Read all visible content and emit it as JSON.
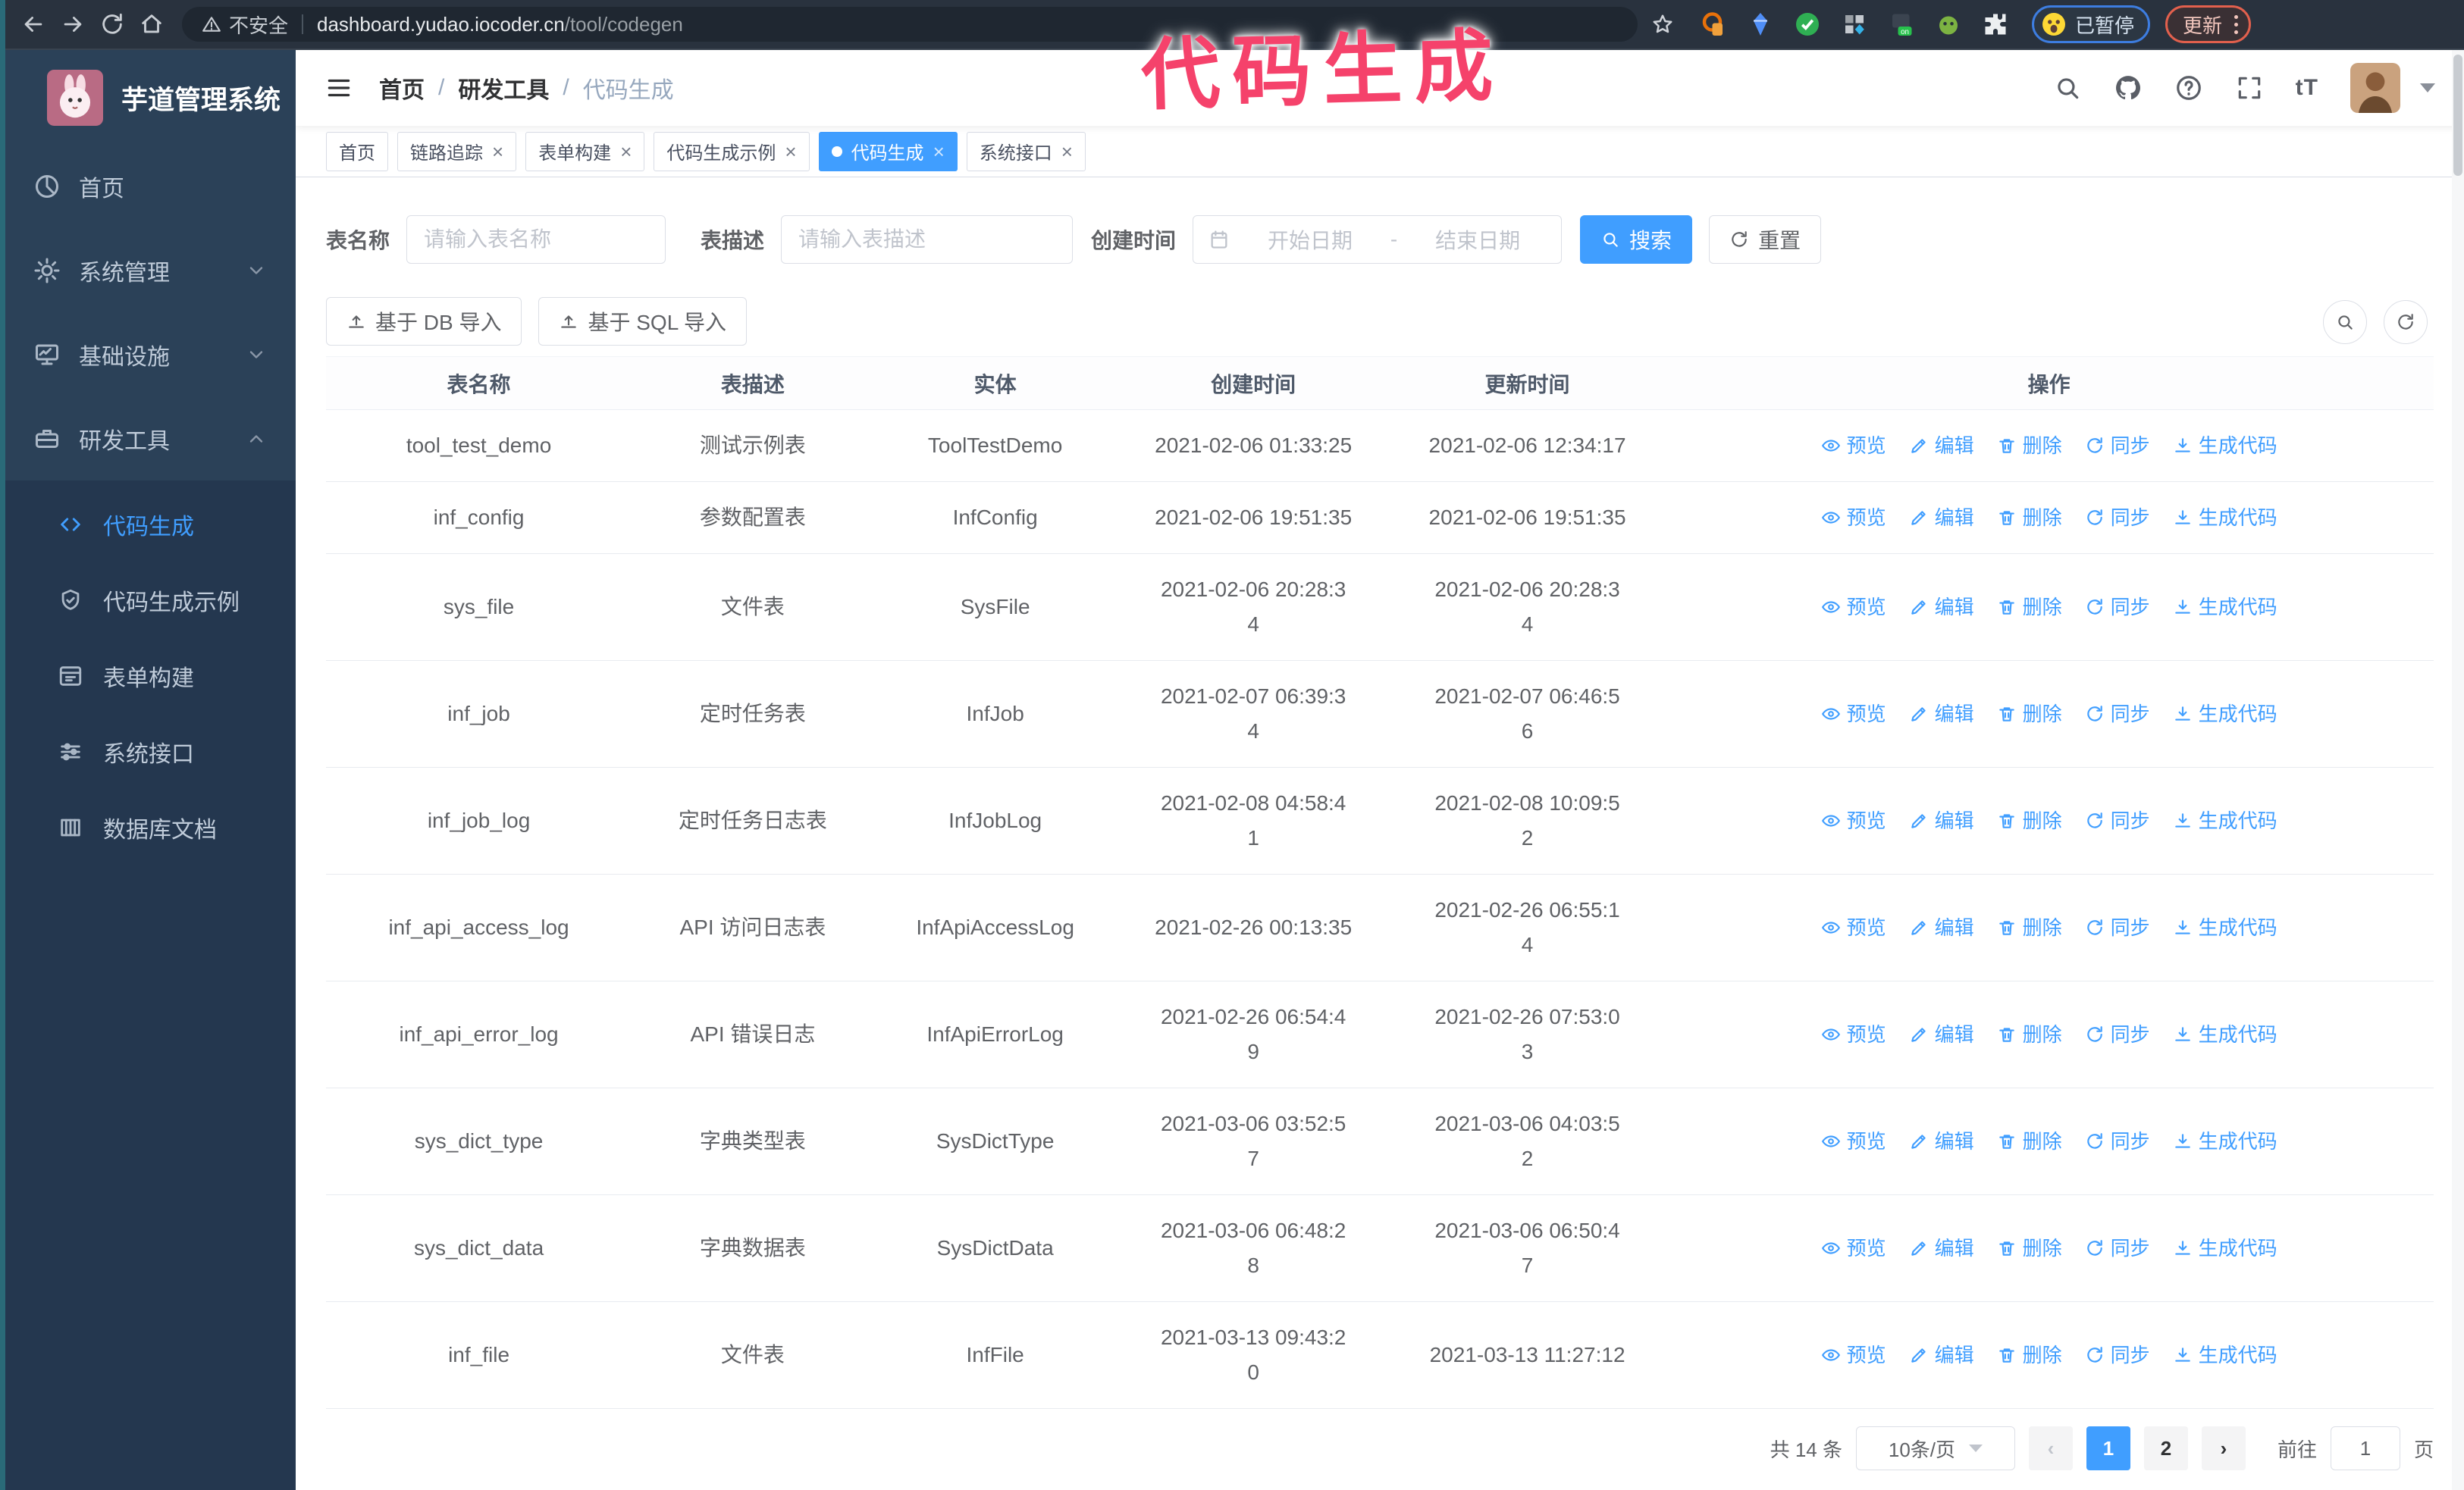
{
  "browser": {
    "security_label": "不安全",
    "url_domain": "dashboard.yudao.iocoder.cn",
    "url_path": "/tool/codegen",
    "profile_badge": "已暂停",
    "update_label": "更新"
  },
  "annotation": {
    "text": "代码生成",
    "color": "#f5426b"
  },
  "sidebar": {
    "title": "芋道管理系统",
    "items": [
      {
        "label": "首页"
      },
      {
        "label": "系统管理"
      },
      {
        "label": "基础设施"
      },
      {
        "label": "研发工具"
      }
    ],
    "submenu": [
      {
        "label": "代码生成",
        "active": true
      },
      {
        "label": "代码生成示例"
      },
      {
        "label": "表单构建"
      },
      {
        "label": "系统接口"
      },
      {
        "label": "数据库文档"
      }
    ]
  },
  "breadcrumb": [
    "首页",
    "研发工具",
    "代码生成"
  ],
  "tags": [
    {
      "label": "首页",
      "closable": false,
      "active": false
    },
    {
      "label": "链路追踪",
      "closable": true,
      "active": false
    },
    {
      "label": "表单构建",
      "closable": true,
      "active": false
    },
    {
      "label": "代码生成示例",
      "closable": true,
      "active": false
    },
    {
      "label": "代码生成",
      "closable": true,
      "active": true
    },
    {
      "label": "系统接口",
      "closable": true,
      "active": false
    }
  ],
  "filters": {
    "table_name_label": "表名称",
    "table_name_placeholder": "请输入表名称",
    "table_desc_label": "表描述",
    "table_desc_placeholder": "请输入表描述",
    "create_time_label": "创建时间",
    "date_start_placeholder": "开始日期",
    "date_separator": "-",
    "date_end_placeholder": "结束日期",
    "search_label": "搜索",
    "reset_label": "重置"
  },
  "toolbar": {
    "import_db_label": "基于 DB 导入",
    "import_sql_label": "基于 SQL 导入"
  },
  "table": {
    "columns": [
      "表名称",
      "表描述",
      "实体",
      "创建时间",
      "更新时间",
      "操作"
    ],
    "row_actions": [
      {
        "label": "预览",
        "icon": "eye"
      },
      {
        "label": "编辑",
        "icon": "edit"
      },
      {
        "label": "删除",
        "icon": "delete"
      },
      {
        "label": "同步",
        "icon": "sync"
      },
      {
        "label": "生成代码",
        "icon": "download"
      }
    ],
    "rows": [
      {
        "name": "tool_test_demo",
        "desc": "测试示例表",
        "entity": "ToolTestDemo",
        "created": "2021-02-06 01:33:25",
        "updated": "2021-02-06 12:34:17"
      },
      {
        "name": "inf_config",
        "desc": "参数配置表",
        "entity": "InfConfig",
        "created": "2021-02-06 19:51:35",
        "updated": "2021-02-06 19:51:35"
      },
      {
        "name": "sys_file",
        "desc": "文件表",
        "entity": "SysFile",
        "created": "2021-02-06 20:28:3\n4",
        "updated": "2021-02-06 20:28:3\n4"
      },
      {
        "name": "inf_job",
        "desc": "定时任务表",
        "entity": "InfJob",
        "created": "2021-02-07 06:39:3\n4",
        "updated": "2021-02-07 06:46:5\n6"
      },
      {
        "name": "inf_job_log",
        "desc": "定时任务日志表",
        "entity": "InfJobLog",
        "created": "2021-02-08 04:58:4\n1",
        "updated": "2021-02-08 10:09:5\n2"
      },
      {
        "name": "inf_api_access_log",
        "desc": "API 访问日志表",
        "entity": "InfApiAccessLog",
        "created": "2021-02-26 00:13:35",
        "updated": "2021-02-26 06:55:1\n4"
      },
      {
        "name": "inf_api_error_log",
        "desc": "API 错误日志",
        "entity": "InfApiErrorLog",
        "created": "2021-02-26 06:54:4\n9",
        "updated": "2021-02-26 07:53:0\n3"
      },
      {
        "name": "sys_dict_type",
        "desc": "字典类型表",
        "entity": "SysDictType",
        "created": "2021-03-06 03:52:5\n7",
        "updated": "2021-03-06 04:03:5\n2"
      },
      {
        "name": "sys_dict_data",
        "desc": "字典数据表",
        "entity": "SysDictData",
        "created": "2021-03-06 06:48:2\n8",
        "updated": "2021-03-06 06:50:4\n7"
      },
      {
        "name": "inf_file",
        "desc": "文件表",
        "entity": "InfFile",
        "created": "2021-03-13 09:43:2\n0",
        "updated": "2021-03-13 11:27:12"
      }
    ]
  },
  "pagination": {
    "total": "共 14 条",
    "page_size": "10条/页",
    "pages": [
      {
        "num": "1",
        "active": true
      },
      {
        "num": "2",
        "active": false
      }
    ],
    "goto_label": "前往",
    "goto_value": "1",
    "page_suffix": "页"
  },
  "colors": {
    "accent": "#409eff",
    "sidebar_bg": "#2b4158",
    "submenu_bg": "#24374f",
    "annotation": "#f5426b"
  }
}
